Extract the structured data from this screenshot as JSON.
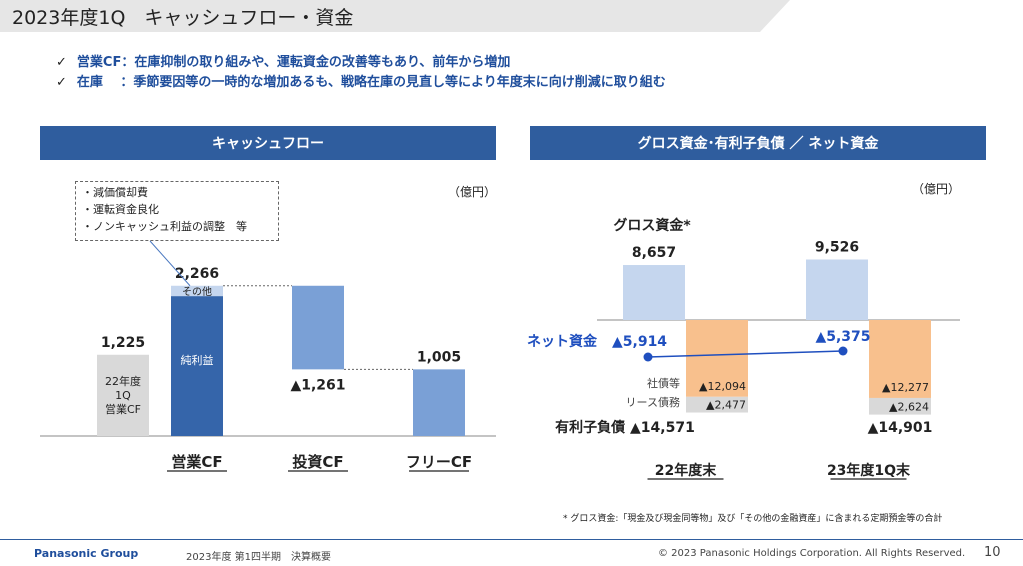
{
  "header": {
    "title": "2023年度1Q　キャッシュフロー・資金"
  },
  "bullets": [
    {
      "check": "✓",
      "text": "営業CF：在庫抑制の取り組みや、運転資金の改善等もあり、前年から増加"
    },
    {
      "check": "✓",
      "text": "在庫　 ：季節要因等の一時的な増加あるも、戦略在庫の見直し等により年度末に向け削減に取り組む"
    }
  ],
  "colors": {
    "dark_blue": "#3565aa",
    "mid_blue": "#7aa0d6",
    "light_blue": "#c5d6ee",
    "gray": "#d9d9d9",
    "orange": "#f8c08d",
    "net_line": "#1f4fbf"
  },
  "chart_data": [
    {
      "type": "bar",
      "subtype": "waterfall",
      "title": "キャッシュフロー",
      "unit_label": "（億円）",
      "note": [
        "・減価償却費",
        "・運転資金良化",
        "・ノンキャッシュ利益の調整　等"
      ],
      "reference": {
        "value": 1225,
        "label": "1,225",
        "inner_label": "22年度\n1Q\n営業CF"
      },
      "categories": [
        "営業CF",
        "投資CF",
        "フリーCF"
      ],
      "operating": {
        "total": 2266,
        "total_label": "2,266",
        "segments": [
          {
            "name": "純利益",
            "value": 2110
          },
          {
            "name": "その他",
            "value": 156
          }
        ]
      },
      "investing": {
        "value": -1261,
        "label": "▲1,261"
      },
      "free": {
        "value": 1005,
        "label": "1,005"
      }
    },
    {
      "type": "bar",
      "title": "グロス資金･有利子負債 ／ ネット資金",
      "unit_label": "（億円）",
      "categories": [
        "22年度末",
        "23年度1Q末"
      ],
      "gross_label": "グロス資金*",
      "gross": {
        "values": [
          8657,
          9526
        ],
        "labels": [
          "8,657",
          "9,526"
        ]
      },
      "net_label": "ネット資金",
      "net": {
        "values": [
          -5914,
          -5375
        ],
        "labels": [
          "▲5,914",
          "▲5,375"
        ]
      },
      "bonds_label": "社債等",
      "bonds": {
        "values": [
          -12094,
          -12277
        ],
        "labels": [
          "▲12,094",
          "▲12,277"
        ]
      },
      "lease_label": "リース債務",
      "lease": {
        "values": [
          -2477,
          -2624
        ],
        "labels": [
          "▲2,477",
          "▲2,624"
        ]
      },
      "debt_label": "有利子負債",
      "debt": {
        "values": [
          -14571,
          -14901
        ],
        "labels": [
          "▲14,571",
          "▲14,901"
        ]
      }
    }
  ],
  "footnote": "* グロス資金:「現金及び現金同等物」及び「その他の金融資産」に含まれる定期預金等の合計",
  "footer": {
    "brand": "Panasonic Group",
    "doc": "2023年度 第1四半期　決算概要",
    "copyright": "© 2023 Panasonic Holdings Corporation. All Rights Reserved.",
    "page": "10"
  }
}
